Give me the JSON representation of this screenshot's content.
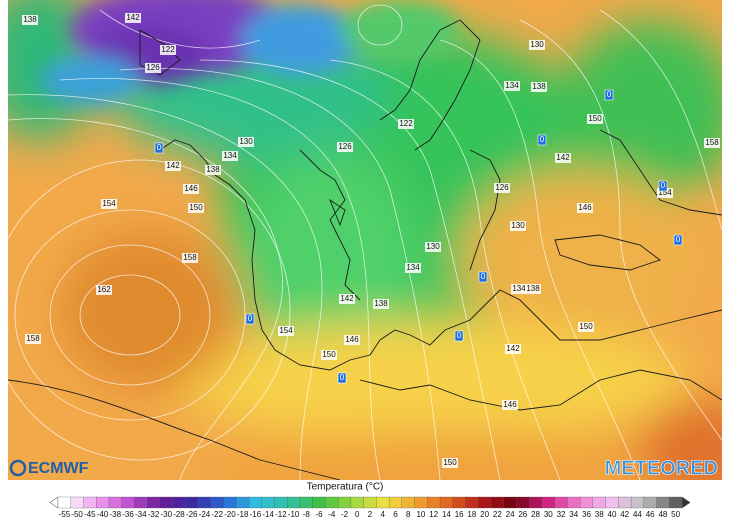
{
  "map": {
    "contour_labels": [
      138,
      142,
      122,
      126,
      130,
      134,
      138,
      122,
      130,
      134,
      126,
      142,
      138,
      146,
      150,
      154,
      158,
      162,
      158,
      150,
      158,
      142,
      126,
      146,
      154,
      130,
      130,
      134,
      142,
      138,
      154,
      146,
      150,
      134,
      138,
      150,
      142,
      146,
      150
    ],
    "freezing_markers": [
      0,
      0,
      0,
      0,
      0,
      0,
      0,
      0,
      0
    ],
    "left_logo": "ECMWF",
    "right_logo": "METEORED",
    "legend": {
      "title": "Temperatura (°C)",
      "ticks": [
        -55,
        -50,
        -45,
        -40,
        -38,
        -36,
        -34,
        -32,
        -30,
        -28,
        -26,
        -24,
        -22,
        -20,
        -18,
        -16,
        -14,
        -12,
        -10,
        -8,
        -6,
        -4,
        -2,
        0,
        2,
        4,
        6,
        8,
        10,
        12,
        14,
        16,
        18,
        20,
        22,
        24,
        26,
        28,
        30,
        32,
        34,
        36,
        38,
        40,
        42,
        44,
        46,
        48,
        50
      ]
    }
  }
}
